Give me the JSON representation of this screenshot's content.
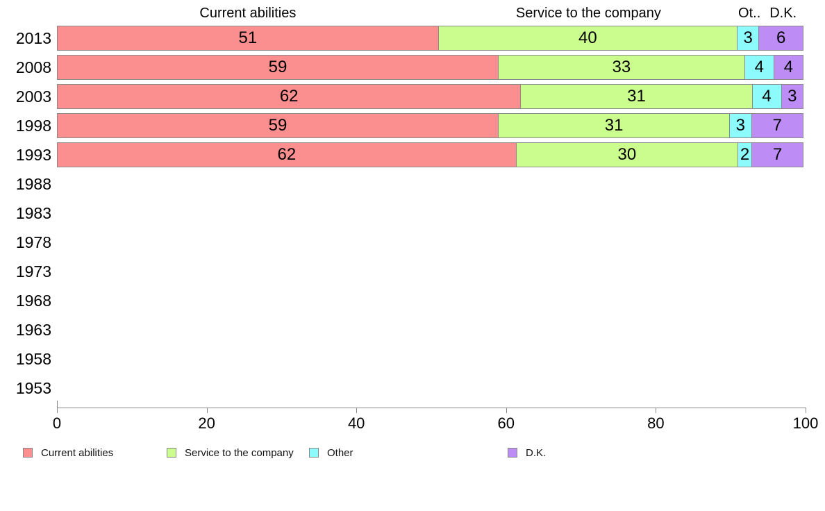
{
  "chart_data": {
    "type": "bar",
    "orientation": "horizontal-stacked",
    "title": "",
    "xlabel": "",
    "ylabel": "",
    "xlim": [
      0,
      100
    ],
    "xticks": [
      0,
      20,
      40,
      60,
      80,
      100
    ],
    "grid": false,
    "legend_position": "bottom",
    "categories": [
      "2013",
      "2008",
      "2003",
      "1998",
      "1993",
      "1988",
      "1983",
      "1978",
      "1973",
      "1968",
      "1963",
      "1958",
      "1953"
    ],
    "series": [
      {
        "name": "Current abilities",
        "color": "#FB8E8E",
        "values": [
          51,
          59,
          62,
          59,
          62,
          0,
          0,
          0,
          0,
          0,
          0,
          0,
          0
        ]
      },
      {
        "name": "Service to the company",
        "color": "#CBFC8E",
        "values": [
          40,
          33,
          31,
          31,
          30,
          0,
          0,
          0,
          0,
          0,
          0,
          0,
          0
        ]
      },
      {
        "name": "Other",
        "color": "#8DFBFB",
        "values": [
          3,
          4,
          4,
          3,
          2,
          0,
          0,
          0,
          0,
          0,
          0,
          0,
          0
        ]
      },
      {
        "name": "D.K.",
        "color": "#BD8DF5",
        "values": [
          6,
          4,
          3,
          7,
          7,
          0,
          0,
          0,
          0,
          0,
          0,
          0,
          0
        ]
      }
    ],
    "column_headers": [
      "Current abilities",
      "Service to the company",
      "Ot..",
      "D.K."
    ],
    "legend": [
      "Current abilities",
      "Service to the company",
      "Other",
      "D.K."
    ],
    "colors": {
      "bar_border": "#8a8a8a",
      "axis": "#888888",
      "text": "#000000"
    }
  }
}
